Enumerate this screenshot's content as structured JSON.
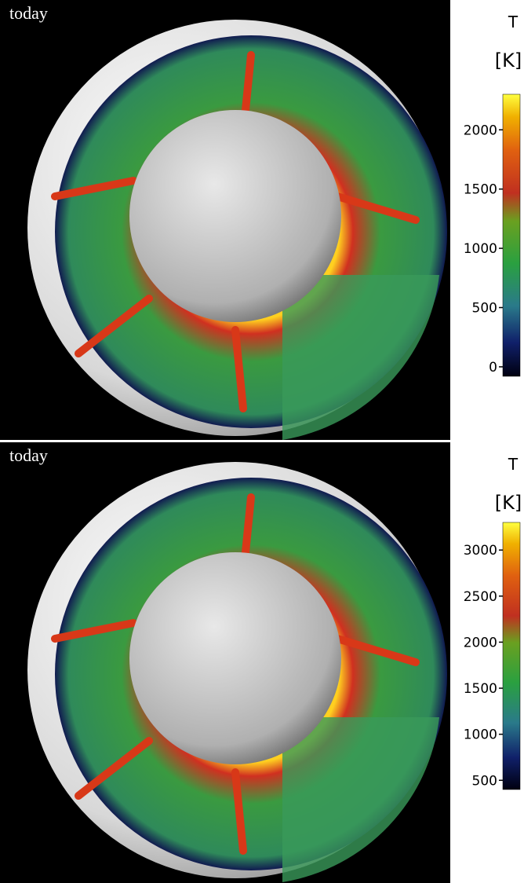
{
  "panels": [
    {
      "label": "today",
      "colorbar": {
        "title": "T",
        "unit": "[K]",
        "ylim": [
          -80,
          2300
        ],
        "yticks": [
          0,
          500,
          1000,
          1500,
          2000
        ]
      }
    },
    {
      "label": "today",
      "colorbar": {
        "title": "T",
        "unit": "[K]",
        "ylim": [
          400,
          3300
        ],
        "yticks": [
          500,
          1000,
          1500,
          2000,
          2500,
          3000
        ]
      }
    }
  ]
}
